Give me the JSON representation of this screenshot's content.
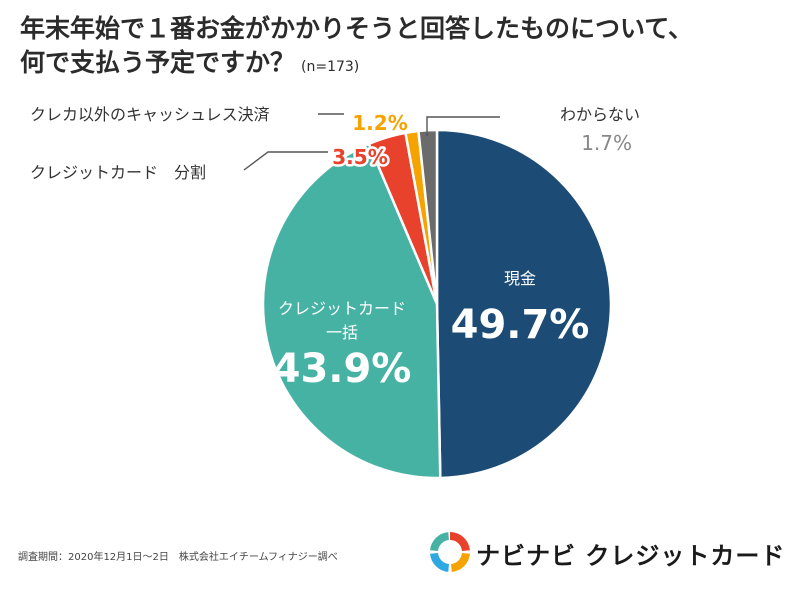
{
  "title_line1": "年末年始で１番お金がかかりそうと回答したものについて、",
  "title_line2": "何で支払う予定ですか？",
  "sample_size": "(n=173)",
  "footnote": "調査期間：2020年12月1日〜2日　株式会社エイチームフィナジー調べ",
  "logo_text": "ナビナビ クレジットカード",
  "logo_colors": [
    "#e8412c",
    "#f5a300",
    "#2da8e0",
    "#45b2a4"
  ],
  "chart_data": {
    "type": "pie",
    "title": "年末年始で１番お金がかかりそうと回答したものについて、何で支払う予定ですか？",
    "slices": [
      {
        "name": "現金",
        "value": 49.7,
        "label": "49.7%",
        "color": "#1c4b75"
      },
      {
        "name": "クレジットカード一括",
        "value": 43.9,
        "label": "43.9%",
        "color": "#45b2a4"
      },
      {
        "name": "クレジットカード　分割",
        "value": 3.5,
        "label": "3.5%",
        "color": "#e8412c"
      },
      {
        "name": "クレカ以外のキャッシュレス決済",
        "value": 1.2,
        "label": "1.2%",
        "color": "#f5a300"
      },
      {
        "name": "わからない",
        "value": 1.7,
        "label": "1.7%",
        "color": "#6b6b6b"
      }
    ],
    "start": "12 o'clock",
    "direction": "clockwise"
  }
}
